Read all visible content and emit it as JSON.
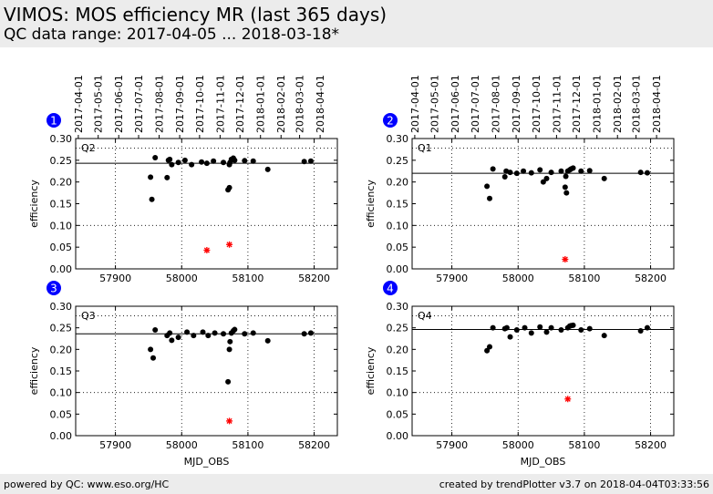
{
  "header": {
    "title": "VIMOS: MOS efficiency MR (last 365 days)",
    "subtitle": "QC data range: 2017-04-05 ... 2018-03-18*"
  },
  "footer": {
    "left": "powered by QC: www.eso.org/HC",
    "right": "created by trendPlotter v3.7 on 2018-04-04T03:33:56"
  },
  "colors": {
    "points": "#000000",
    "outliers": "#ff0000",
    "badge": "#0000ff"
  },
  "chart_data": [
    {
      "type": "scatter",
      "badge": "1",
      "label": "Q2",
      "xlabel": "",
      "ylabel": "efficiency",
      "xlim": [
        57840,
        58235
      ],
      "ylim": [
        0.0,
        0.3
      ],
      "xticks": [
        57900,
        58000,
        58100,
        58200
      ],
      "yticks": [
        "0.00",
        "0.05",
        "0.10",
        "0.15",
        "0.20",
        "0.25",
        "0.30"
      ],
      "date_ticks": [
        "2017-04-01",
        "2017-05-01",
        "2017-06-01",
        "2017-07-01",
        "2017-08-01",
        "2017-09-01",
        "2017-10-01",
        "2017-11-01",
        "2017-12-01",
        "2018-01-01",
        "2018-02-01",
        "2018-03-01",
        "2018-04-01"
      ],
      "mean": 0.243,
      "dotted_levels": [
        0.278,
        0.1
      ],
      "points": [
        [
          57953,
          0.211
        ],
        [
          57955,
          0.16
        ],
        [
          57960,
          0.256
        ],
        [
          57978,
          0.21
        ],
        [
          57980,
          0.25
        ],
        [
          57982,
          0.252
        ],
        [
          57985,
          0.24
        ],
        [
          57995,
          0.245
        ],
        [
          58005,
          0.25
        ],
        [
          58015,
          0.24
        ],
        [
          58030,
          0.246
        ],
        [
          58038,
          0.243
        ],
        [
          58048,
          0.248
        ],
        [
          58063,
          0.245
        ],
        [
          58070,
          0.182
        ],
        [
          58072,
          0.187
        ],
        [
          58072,
          0.24
        ],
        [
          58073,
          0.245
        ],
        [
          58075,
          0.252
        ],
        [
          58078,
          0.255
        ],
        [
          58080,
          0.25
        ],
        [
          58095,
          0.249
        ],
        [
          58108,
          0.248
        ],
        [
          58130,
          0.229
        ],
        [
          58185,
          0.247
        ],
        [
          58195,
          0.248
        ]
      ],
      "outliers": [
        [
          58038,
          0.043
        ],
        [
          58072,
          0.056
        ]
      ]
    },
    {
      "type": "scatter",
      "badge": "2",
      "label": "Q1",
      "xlabel": "",
      "ylabel": "efficiency",
      "xlim": [
        57840,
        58235
      ],
      "ylim": [
        0.0,
        0.3
      ],
      "xticks": [
        57900,
        58000,
        58100,
        58200
      ],
      "yticks": [
        "0.00",
        "0.05",
        "0.10",
        "0.15",
        "0.20",
        "0.25",
        "0.30"
      ],
      "date_ticks": [
        "2017-04-01",
        "2017-05-01",
        "2017-06-01",
        "2017-07-01",
        "2017-08-01",
        "2017-09-01",
        "2017-10-01",
        "2017-11-01",
        "2017-12-01",
        "2018-01-01",
        "2018-02-01",
        "2018-03-01",
        "2018-04-01"
      ],
      "mean": 0.22,
      "dotted_levels": [
        0.278,
        0.1
      ],
      "points": [
        [
          57953,
          0.19
        ],
        [
          57957,
          0.162
        ],
        [
          57962,
          0.23
        ],
        [
          57980,
          0.212
        ],
        [
          57982,
          0.225
        ],
        [
          57988,
          0.222
        ],
        [
          57998,
          0.22
        ],
        [
          58008,
          0.225
        ],
        [
          58020,
          0.221
        ],
        [
          58033,
          0.228
        ],
        [
          58038,
          0.2
        ],
        [
          58043,
          0.208
        ],
        [
          58050,
          0.222
        ],
        [
          58065,
          0.225
        ],
        [
          58071,
          0.188
        ],
        [
          58072,
          0.213
        ],
        [
          58073,
          0.175
        ],
        [
          58075,
          0.225
        ],
        [
          58078,
          0.228
        ],
        [
          58080,
          0.23
        ],
        [
          58083,
          0.232
        ],
        [
          58095,
          0.225
        ],
        [
          58108,
          0.226
        ],
        [
          58130,
          0.208
        ],
        [
          58185,
          0.222
        ],
        [
          58195,
          0.221
        ]
      ],
      "outliers": [
        [
          58071,
          0.022
        ]
      ]
    },
    {
      "type": "scatter",
      "badge": "3",
      "label": "Q3",
      "xlabel": "MJD_OBS",
      "ylabel": "efficiency",
      "xlim": [
        57840,
        58235
      ],
      "ylim": [
        0.0,
        0.3
      ],
      "xticks": [
        57900,
        58000,
        58100,
        58200
      ],
      "yticks": [
        "0.00",
        "0.05",
        "0.10",
        "0.15",
        "0.20",
        "0.25",
        "0.30"
      ],
      "mean": 0.236,
      "dotted_levels": [
        0.278,
        0.1
      ],
      "points": [
        [
          57953,
          0.2
        ],
        [
          57957,
          0.18
        ],
        [
          57960,
          0.245
        ],
        [
          57978,
          0.232
        ],
        [
          57982,
          0.238
        ],
        [
          57985,
          0.221
        ],
        [
          57995,
          0.228
        ],
        [
          58008,
          0.24
        ],
        [
          58018,
          0.232
        ],
        [
          58032,
          0.24
        ],
        [
          58040,
          0.232
        ],
        [
          58050,
          0.238
        ],
        [
          58063,
          0.236
        ],
        [
          58070,
          0.125
        ],
        [
          58072,
          0.2
        ],
        [
          58073,
          0.218
        ],
        [
          58075,
          0.238
        ],
        [
          58078,
          0.243
        ],
        [
          58080,
          0.246
        ],
        [
          58095,
          0.236
        ],
        [
          58108,
          0.238
        ],
        [
          58130,
          0.22
        ],
        [
          58185,
          0.236
        ],
        [
          58195,
          0.238
        ]
      ],
      "outliers": [
        [
          58072,
          0.034
        ]
      ]
    },
    {
      "type": "scatter",
      "badge": "4",
      "label": "Q4",
      "xlabel": "MJD_OBS",
      "ylabel": "efficiency",
      "xlim": [
        57840,
        58235
      ],
      "ylim": [
        0.0,
        0.3
      ],
      "xticks": [
        57900,
        58000,
        58100,
        58200
      ],
      "yticks": [
        "0.00",
        "0.05",
        "0.10",
        "0.15",
        "0.20",
        "0.25",
        "0.30"
      ],
      "mean": 0.246,
      "dotted_levels": [
        0.278,
        0.1
      ],
      "points": [
        [
          57953,
          0.197
        ],
        [
          57957,
          0.206
        ],
        [
          57962,
          0.25
        ],
        [
          57980,
          0.248
        ],
        [
          57983,
          0.25
        ],
        [
          57988,
          0.229
        ],
        [
          57998,
          0.245
        ],
        [
          58010,
          0.25
        ],
        [
          58020,
          0.238
        ],
        [
          58033,
          0.252
        ],
        [
          58043,
          0.24
        ],
        [
          58050,
          0.25
        ],
        [
          58065,
          0.245
        ],
        [
          58075,
          0.25
        ],
        [
          58078,
          0.254
        ],
        [
          58080,
          0.255
        ],
        [
          58083,
          0.256
        ],
        [
          58095,
          0.245
        ],
        [
          58108,
          0.248
        ],
        [
          58130,
          0.232
        ],
        [
          58185,
          0.243
        ],
        [
          58195,
          0.25
        ]
      ],
      "outliers": [
        [
          58075,
          0.085
        ]
      ]
    }
  ]
}
